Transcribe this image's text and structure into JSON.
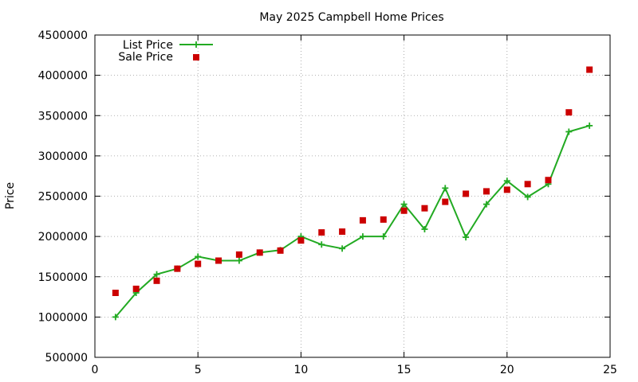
{
  "chart_data": {
    "type": "line",
    "title": "May 2025 Campbell Home Prices",
    "xlabel": "",
    "ylabel": "Price",
    "xlim": [
      0,
      25
    ],
    "ylim": [
      500000,
      4500000
    ],
    "xticks": [
      "0",
      "5",
      "10",
      "15",
      "20",
      "25"
    ],
    "yticks": [
      "500000",
      "1000000",
      "1500000",
      "2000000",
      "2500000",
      "3000000",
      "3500000",
      "4000000",
      "4500000"
    ],
    "grid": true,
    "legend_position": "top-left",
    "series": [
      {
        "name": "List Price",
        "style": "line+cross",
        "color": "#22aa22",
        "x": [
          1,
          2,
          3,
          4,
          5,
          6,
          7,
          8,
          9,
          10,
          11,
          12,
          13,
          14,
          15,
          16,
          17,
          18,
          19,
          20,
          21,
          22,
          23,
          24
        ],
        "values": [
          1000000,
          1300000,
          1530000,
          1600000,
          1750000,
          1700000,
          1700000,
          1800000,
          1830000,
          2000000,
          1900000,
          1850000,
          2000000,
          2000000,
          2400000,
          2090000,
          2600000,
          1990000,
          2400000,
          2690000,
          2490000,
          2650000,
          3300000,
          3375000
        ]
      },
      {
        "name": "Sale Price",
        "style": "square",
        "color": "#cc0000",
        "x": [
          1,
          2,
          3,
          4,
          5,
          6,
          7,
          8,
          9,
          10,
          11,
          12,
          13,
          14,
          15,
          16,
          17,
          18,
          19,
          20,
          21,
          22,
          23,
          24
        ],
        "values": [
          1300000,
          1350000,
          1450000,
          1600000,
          1660000,
          1700000,
          1775000,
          1800000,
          1825000,
          1950000,
          2050000,
          2060000,
          2200000,
          2210000,
          2320000,
          2350000,
          2430000,
          2530000,
          2560000,
          2580000,
          2650000,
          2700000,
          3540000,
          4070000
        ]
      }
    ]
  }
}
